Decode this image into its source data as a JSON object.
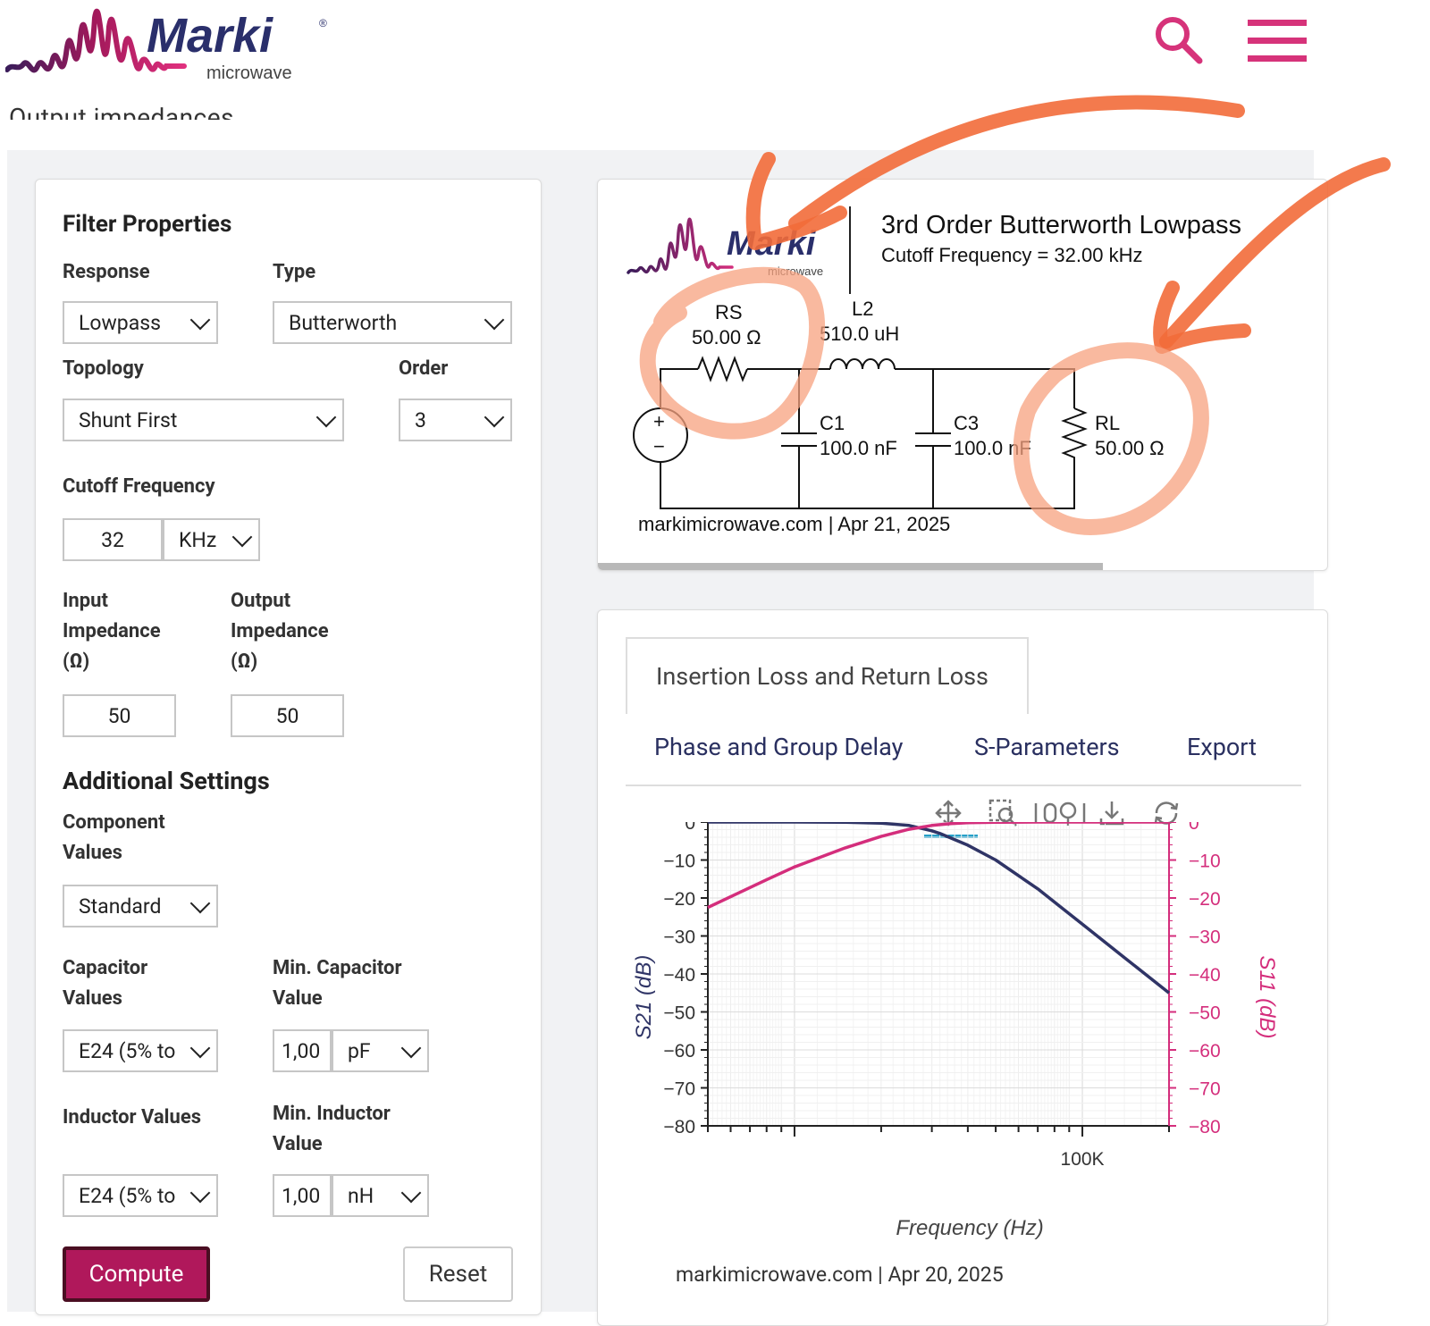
{
  "header": {
    "brand": "Marki",
    "brand_sub": "microwave",
    "registered": "®",
    "search_icon": "search-icon",
    "menu_icon": "hamburger-menu-icon",
    "cut_off_text": "Output impedances."
  },
  "colors": {
    "brand_navy": "#2a2f6b",
    "brand_magenta": "#c2185b",
    "header_icons": "#d6337a",
    "compute_button": "#b0185b",
    "s21_trace": "#2f3466",
    "s11_trace": "#d42e7c",
    "annotation_orange": "#f26b3a"
  },
  "filter_properties": {
    "title": "Filter Properties",
    "response_label": "Response",
    "response_value": "Lowpass",
    "type_label": "Type",
    "type_value": "Butterworth",
    "topology_label": "Topology",
    "topology_value": "Shunt First",
    "order_label": "Order",
    "order_value": "3",
    "cutoff_label": "Cutoff Frequency",
    "cutoff_value": "32",
    "cutoff_unit": "KHz",
    "input_impedance_label_1": "Input",
    "input_impedance_label_2": "Impedance",
    "input_impedance_label_3": "(Ω)",
    "input_impedance_value": "50",
    "output_impedance_label_1": "Output",
    "output_impedance_label_2": "Impedance",
    "output_impedance_label_3": "(Ω)",
    "output_impedance_value": "50"
  },
  "additional_settings": {
    "title": "Additional Settings",
    "component_values_label_1": "Component",
    "component_values_label_2": "Values",
    "component_values_value": "Standard",
    "capacitor_values_label_1": "Capacitor",
    "capacitor_values_label_2": "Values",
    "capacitor_values_value": "E24 (5% to",
    "min_capacitor_label_1": "Min. Capacitor",
    "min_capacitor_label_2": "Value",
    "min_capacitor_value": "1,00",
    "min_capacitor_unit": "pF",
    "inductor_values_label": "Inductor Values",
    "inductor_values_value": "E24 (5% to",
    "min_inductor_label_1": "Min. Inductor",
    "min_inductor_label_2": "Value",
    "min_inductor_value": "1,00",
    "min_inductor_unit": "nH"
  },
  "buttons": {
    "compute": "Compute",
    "reset": "Reset"
  },
  "schematic": {
    "title": "3rd Order Butterworth Lowpass",
    "subtitle": "Cutoff Frequency = 32.00 kHz",
    "rs_name": "RS",
    "rs_value": "50.00 Ω",
    "l2_name": "L2",
    "l2_value": "510.0 uH",
    "c1_name": "C1",
    "c1_value": "100.0 nF",
    "c3_name": "C3",
    "c3_value": "100.0 nF",
    "rl_name": "RL",
    "rl_value": "50.00 Ω",
    "source_plus": "+",
    "source_minus": "−",
    "footer": "markimicrowave.com | Apr 21, 2025"
  },
  "tabs": {
    "insertion": "Insertion Loss and Return Loss",
    "phase": "Phase and Group Delay",
    "sparams": "S-Parameters",
    "export": "Export"
  },
  "toolbar": {
    "pan": "pan-icon",
    "zoom": "box-zoom-icon",
    "wheel_zoom": "wheel-zoom-icon",
    "save": "download-icon",
    "reset": "refresh-icon"
  },
  "chart_data": {
    "type": "line",
    "xlabel": "Frequency (Hz)",
    "ylabel": "S21 (dB)",
    "y2label": "S11 (dB)",
    "xscale": "log",
    "xlim": [
      5000,
      200000
    ],
    "ylim": [
      -80,
      0
    ],
    "y2lim": [
      -80,
      0
    ],
    "x_tick_labels": [
      {
        "x": 100000,
        "label": "100K"
      }
    ],
    "y_ticks": [
      0,
      -10,
      -20,
      -30,
      -40,
      -50,
      -60,
      -70,
      -80
    ],
    "grid": true,
    "series": [
      {
        "name": "S21",
        "axis": "left",
        "color": "#2f3466",
        "x": [
          5000,
          10000,
          15000,
          20000,
          25000,
          30000,
          32000,
          40000,
          50000,
          70000,
          100000,
          140000,
          200000
        ],
        "y": [
          0,
          0,
          -0.05,
          -0.3,
          -0.9,
          -2.3,
          -3.0,
          -6.1,
          -10.0,
          -17.6,
          -26.9,
          -35.7,
          -45.0
        ]
      },
      {
        "name": "S11",
        "axis": "right",
        "color": "#d42e7c",
        "x": [
          5000,
          8000,
          10000,
          15000,
          20000,
          25000,
          30000,
          35000,
          40000,
          50000,
          70000,
          200000
        ],
        "y": [
          -22.5,
          -15.2,
          -11.8,
          -6.8,
          -3.8,
          -1.9,
          -0.9,
          -0.4,
          -0.2,
          -0.05,
          0,
          0
        ]
      }
    ]
  },
  "plot_footer": "markimicrowave.com | Apr 20, 2025"
}
